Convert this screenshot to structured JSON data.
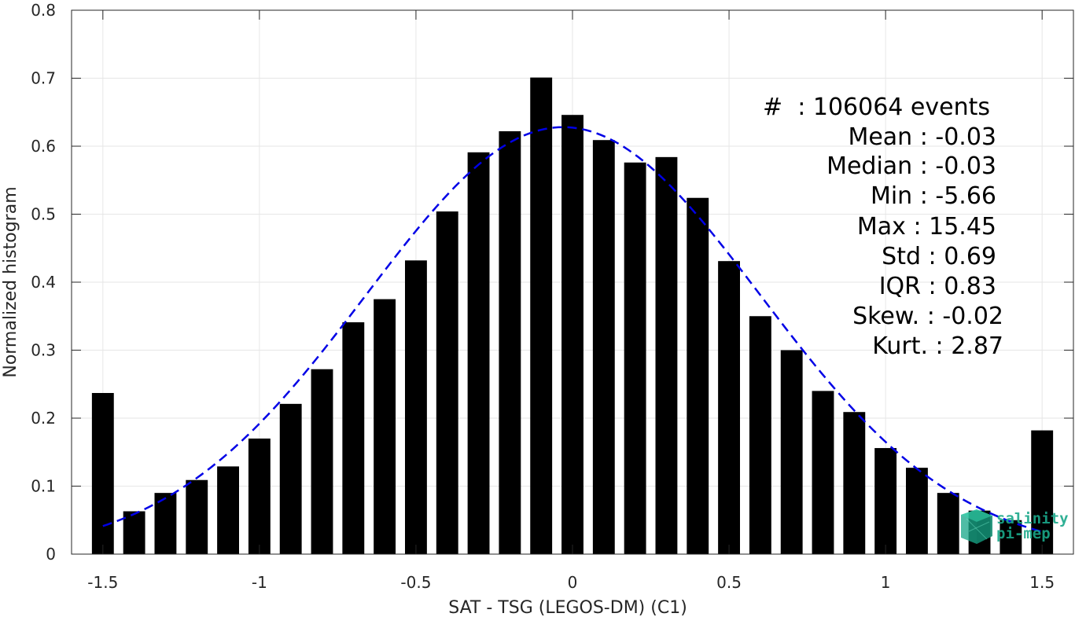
{
  "chart_data": {
    "type": "bar",
    "xlabel": "SAT - TSG (LEGOS-DM) (C1)",
    "ylabel": "Normalized histogram",
    "xlim": [
      -1.6,
      1.6
    ],
    "ylim": [
      0,
      0.8
    ],
    "grid": true,
    "x_ticks": [
      -1.5,
      -1,
      -0.5,
      0,
      0.5,
      1,
      1.5
    ],
    "x_tick_labels": [
      "-1.5",
      "-1",
      "-0.5",
      "0",
      "0.5",
      "1",
      "1.5"
    ],
    "y_ticks": [
      0,
      0.1,
      0.2,
      0.3,
      0.4,
      0.5,
      0.6,
      0.7,
      0.8
    ],
    "y_tick_labels": [
      "0",
      "0.1",
      "0.2",
      "0.3",
      "0.4",
      "0.5",
      "0.6",
      "0.7",
      "0.8"
    ],
    "bar_width": 0.07,
    "bars": [
      {
        "x": -1.5,
        "y": 0.237
      },
      {
        "x": -1.4,
        "y": 0.063
      },
      {
        "x": -1.3,
        "y": 0.09
      },
      {
        "x": -1.2,
        "y": 0.109
      },
      {
        "x": -1.1,
        "y": 0.129
      },
      {
        "x": -1.0,
        "y": 0.17
      },
      {
        "x": -0.9,
        "y": 0.221
      },
      {
        "x": -0.8,
        "y": 0.272
      },
      {
        "x": -0.7,
        "y": 0.341
      },
      {
        "x": -0.6,
        "y": 0.375
      },
      {
        "x": -0.5,
        "y": 0.432
      },
      {
        "x": -0.4,
        "y": 0.504
      },
      {
        "x": -0.3,
        "y": 0.591
      },
      {
        "x": -0.2,
        "y": 0.622
      },
      {
        "x": -0.1,
        "y": 0.701
      },
      {
        "x": 0.0,
        "y": 0.646
      },
      {
        "x": 0.1,
        "y": 0.609
      },
      {
        "x": 0.2,
        "y": 0.576
      },
      {
        "x": 0.3,
        "y": 0.584
      },
      {
        "x": 0.4,
        "y": 0.524
      },
      {
        "x": 0.5,
        "y": 0.431
      },
      {
        "x": 0.6,
        "y": 0.35
      },
      {
        "x": 0.7,
        "y": 0.3
      },
      {
        "x": 0.8,
        "y": 0.24
      },
      {
        "x": 0.9,
        "y": 0.209
      },
      {
        "x": 1.0,
        "y": 0.156
      },
      {
        "x": 1.1,
        "y": 0.127
      },
      {
        "x": 1.2,
        "y": 0.09
      },
      {
        "x": 1.3,
        "y": 0.064
      },
      {
        "x": 1.4,
        "y": 0.05
      },
      {
        "x": 1.5,
        "y": 0.182
      }
    ],
    "fit_curve": {
      "style": "dashed",
      "color": "#0000e6",
      "type": "gaussian",
      "mean": -0.03,
      "std": 0.63,
      "peak": 0.628,
      "x_range": [
        -1.5,
        1.5
      ]
    },
    "bar_color": "#000000",
    "annotations": [
      {
        "id": "events",
        "text": "#  : 106064 events"
      },
      {
        "id": "mean",
        "text": "Mean : -0.03"
      },
      {
        "id": "median",
        "text": "Median : -0.03"
      },
      {
        "id": "min",
        "text": "Min : -5.66"
      },
      {
        "id": "max",
        "text": "Max : 15.45"
      },
      {
        "id": "std",
        "text": "Std : 0.69"
      },
      {
        "id": "iqr",
        "text": "IQR : 0.83"
      },
      {
        "id": "skew",
        "text": "Skew. : -0.02"
      },
      {
        "id": "kurt",
        "text": "Kurt. : 2.87"
      }
    ]
  },
  "logo": {
    "line1": "salinity",
    "line2": "pi-mep",
    "color": "#1aa88a"
  }
}
